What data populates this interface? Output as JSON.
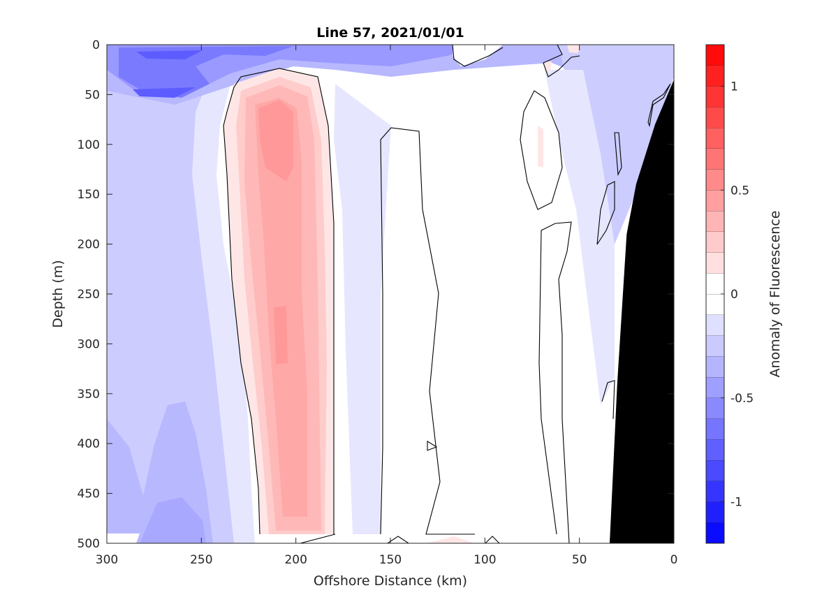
{
  "chart_data": {
    "type": "heatmap",
    "subtype": "filled-contour",
    "title": "Line 57, 2021/01/01",
    "xlabel": "Offshore Distance (km)",
    "ylabel": "Depth (m)",
    "xlim": [
      300,
      0
    ],
    "ylim": [
      0,
      500
    ],
    "x_reversed": true,
    "y_reversed": true,
    "x_ticks": [
      "300",
      "250",
      "200",
      "150",
      "100",
      "50",
      "0"
    ],
    "y_ticks": [
      "0",
      "50",
      "100",
      "150",
      "200",
      "250",
      "300",
      "350",
      "400",
      "450",
      "500"
    ],
    "colorbar": {
      "label": "Anomaly of Fluorescence",
      "range": [
        -1.2,
        1.2
      ],
      "ticks": [
        "-1",
        "-0.5",
        "0",
        "0.5",
        "1"
      ],
      "tick_values": [
        -1,
        -0.5,
        0,
        0.5,
        1
      ],
      "levels": 24,
      "colormap": "blue-white-red",
      "low_color": "#0000ff",
      "mid_color": "#ffffff",
      "high_color": "#ff0000"
    },
    "zero_contour_color": "#000000",
    "masked_region_color": "#000000",
    "regions": [
      {
        "name": "surface-negative-band",
        "x": [
          300,
          0
        ],
        "depth": [
          0,
          60
        ],
        "value": -0.6
      },
      {
        "name": "offshore-negative-zone",
        "x": [
          300,
          240
        ],
        "depth": [
          60,
          500
        ],
        "value": -0.25
      },
      {
        "name": "subsurface-positive-core",
        "x": [
          225,
          180
        ],
        "depth": [
          40,
          490
        ],
        "value": 0.35
      },
      {
        "name": "positive-core-max",
        "x": [
          215,
          195
        ],
        "depth": [
          60,
          320
        ],
        "value": 0.45
      },
      {
        "name": "central-neutral-zone",
        "x": [
          155,
          60
        ],
        "depth": [
          80,
          490
        ],
        "value": 0
      },
      {
        "name": "nearshore-negative-zone",
        "x": [
          60,
          30
        ],
        "depth": [
          0,
          350
        ],
        "value": -0.25
      }
    ],
    "bathymetry": [
      {
        "x": 0,
        "depth": 35
      },
      {
        "x": 10,
        "depth": 80
      },
      {
        "x": 20,
        "depth": 140
      },
      {
        "x": 25,
        "depth": 190
      },
      {
        "x": 30,
        "depth": 340
      },
      {
        "x": 34,
        "depth": 500
      }
    ]
  }
}
